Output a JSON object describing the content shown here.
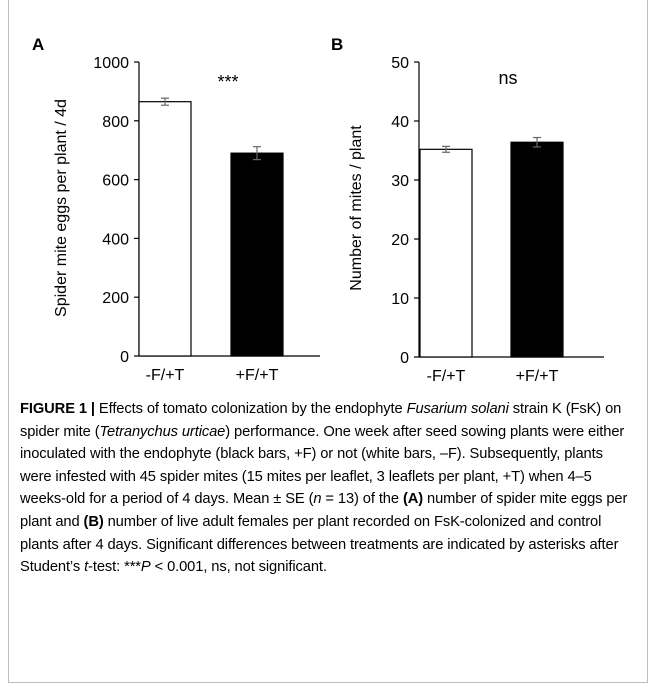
{
  "chart_data": [
    {
      "panel": "A",
      "type": "bar",
      "categories": [
        "-F/+T",
        "+F/+T"
      ],
      "values": [
        865,
        690
      ],
      "errors": [
        12,
        22
      ],
      "colors": [
        "#ffffff",
        "#000000"
      ],
      "ylabel": "Spider mite eggs per plant / 4d",
      "ylim": [
        0,
        1000
      ],
      "yticks": [
        "0",
        "200",
        "400",
        "600",
        "800",
        "1000"
      ],
      "yticks_values": [
        0,
        200,
        400,
        600,
        800,
        1000
      ],
      "annotation": "***",
      "grid": false
    },
    {
      "panel": "B",
      "type": "bar",
      "categories": [
        "-F/+T",
        "+F/+T"
      ],
      "values": [
        35.2,
        36.4
      ],
      "errors": [
        0.5,
        0.8
      ],
      "colors": [
        "#ffffff",
        "#000000"
      ],
      "ylabel": "Number of mites / plant",
      "ylim": [
        0,
        50
      ],
      "yticks": [
        "0",
        "10",
        "20",
        "30",
        "40",
        "50"
      ],
      "yticks_values": [
        0,
        10,
        20,
        30,
        40,
        50
      ],
      "annotation": "ns",
      "grid": false
    }
  ],
  "caption": {
    "label": "FIGURE 1 |",
    "t1": " Effects of tomato colonization by the endophyte ",
    "fusarium": "Fusarium solani",
    "t2": " strain K (FsK) on spider mite (",
    "tetranychus": "Tetranychus urticae",
    "t3": ") performance. One week after seed sowing plants were either inoculated with the endophyte (black bars, +F) or not (white bars, –F). Subsequently, plants were infested with 45 spider mites (15 mites per leaflet, 3 leaflets per plant, +T) when 4–5 weeks-old for a period of 4 days. Mean ± SE (",
    "n": "n",
    "t4": " = 13) of the ",
    "a": "(A)",
    "t5": " number of spider mite eggs per plant and ",
    "b": "(B)",
    "t6": " number of live adult females per plant recorded on FsK-colonized and control plants after 4 days. Significant differences between treatments are indicated by asterisks after Student’s ",
    "t": "t",
    "t7": "-test: ***",
    "p": "P",
    "t8": " < 0.001, ns, not significant."
  }
}
